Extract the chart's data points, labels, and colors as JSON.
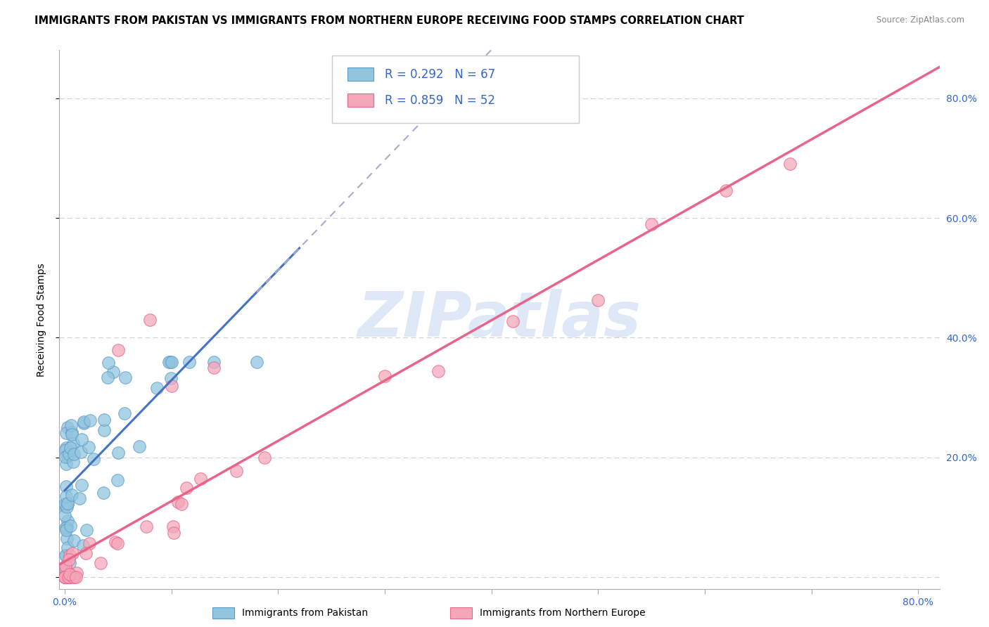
{
  "title": "IMMIGRANTS FROM PAKISTAN VS IMMIGRANTS FROM NORTHERN EUROPE RECEIVING FOOD STAMPS CORRELATION CHART",
  "source": "Source: ZipAtlas.com",
  "ylabel": "Receiving Food Stamps",
  "xlabel": "",
  "xlim": [
    -0.005,
    0.82
  ],
  "ylim": [
    -0.02,
    0.88
  ],
  "xticks": [
    0.0,
    0.1,
    0.2,
    0.3,
    0.4,
    0.5,
    0.6,
    0.7,
    0.8
  ],
  "xticklabels": [
    "0.0%",
    "",
    "",
    "",
    "",
    "",
    "",
    "",
    "80.0%"
  ],
  "ytick_positions": [
    0.0,
    0.2,
    0.4,
    0.6,
    0.8
  ],
  "ytick_labels_right": [
    "",
    "20.0%",
    "40.0%",
    "60.0%",
    "80.0%"
  ],
  "pakistan_color": "#92c5de",
  "pakistan_edge_color": "#5b9bc8",
  "northern_europe_color": "#f4a7b9",
  "northern_europe_edge_color": "#e8648a",
  "pakistan_line_color": "#4472c4",
  "northern_europe_line_color": "#e8648a",
  "pakistan_R": 0.292,
  "pakistan_N": 67,
  "northern_europe_R": 0.859,
  "northern_europe_N": 52,
  "tick_color": "#3366cc",
  "watermark_text": "ZIPatlas",
  "watermark_color": "#c8daf0",
  "grid_color": "#d0d0d0",
  "background_color": "#ffffff",
  "title_fontsize": 10.5,
  "axis_label_fontsize": 10,
  "tick_fontsize": 10,
  "legend_fontsize": 12,
  "pakistan_line_intercept": 0.04,
  "pakistan_line_slope": 0.8,
  "ne_line_intercept": -0.04,
  "ne_line_slope": 1.05
}
